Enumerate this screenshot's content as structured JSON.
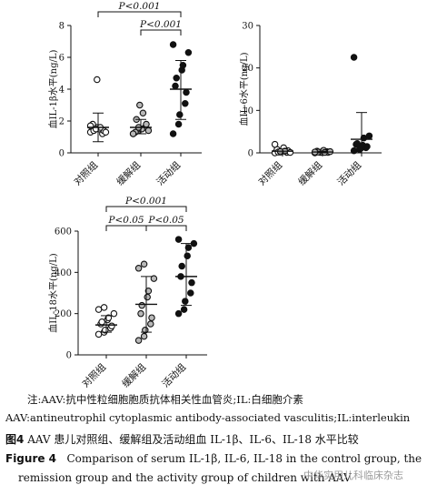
{
  "chart_data": [
    {
      "type": "scatter",
      "ylabel": "血IL-1β水平(ng/L)",
      "ylim": [
        0,
        8
      ],
      "yticks": [
        "0",
        "2",
        "4",
        "6",
        "8"
      ],
      "categories": [
        "对照组",
        "缓解组",
        "活动组"
      ],
      "fills": [
        "#ffffff",
        "#b8b8b8",
        "#111111"
      ],
      "points": [
        [
          1.3,
          1.5,
          1.6,
          1.2,
          1.4,
          1.8,
          1.4,
          1.5,
          1.6,
          1.3,
          1.7,
          1.5,
          4.6
        ],
        [
          1.2,
          1.4,
          1.5,
          1.6,
          1.8,
          1.3,
          2.1,
          1.5,
          2.5,
          1.4,
          1.2,
          1.6,
          3.0
        ],
        [
          1.2,
          1.8,
          2.4,
          3.1,
          3.8,
          4.2,
          4.7,
          5.2,
          5.5,
          6.3,
          6.8
        ]
      ],
      "means": [
        1.6,
        1.6,
        4.0
      ],
      "sd": [
        [
          0.7,
          2.5
        ],
        [
          1.2,
          2.1
        ],
        [
          2.1,
          5.8
        ]
      ],
      "significance": [
        {
          "label": "P<0.001",
          "from": 0,
          "to": 2
        },
        {
          "label": "P<0.001",
          "from": 1,
          "to": 2
        }
      ]
    },
    {
      "type": "scatter",
      "ylabel": "血IL-6水平(ng/L)",
      "ylim": [
        0,
        30
      ],
      "yticks": [
        "0",
        "10",
        "20",
        "30"
      ],
      "categories": [
        "对照组",
        "缓解组",
        "活动组"
      ],
      "fills": [
        "#ffffff",
        "#b8b8b8",
        "#111111"
      ],
      "points": [
        [
          0.0,
          0.2,
          0.3,
          0.1,
          0.5,
          0.8,
          0.2,
          1.2,
          0.4,
          0.1,
          2.0,
          0.3
        ],
        [
          0.0,
          0.1,
          0.2,
          0.3,
          0.1,
          0.4,
          0.2,
          0.6,
          0.1,
          0.3,
          0.2
        ],
        [
          0.5,
          0.8,
          1.0,
          1.2,
          1.5,
          2.0,
          2.2,
          1.8,
          3.5,
          4.0,
          22.5
        ]
      ],
      "means": [
        0.4,
        0.2,
        3.2
      ],
      "sd": [
        [
          0.0,
          0.9
        ],
        [
          0.0,
          0.4
        ],
        [
          0.0,
          9.5
        ]
      ],
      "significance": []
    },
    {
      "type": "scatter",
      "ylabel": "血IL-18水平(ng/L)",
      "ylim": [
        0,
        600
      ],
      "yticks": [
        "0",
        "200",
        "400",
        "600"
      ],
      "categories": [
        "对照组",
        "缓解组",
        "活动组"
      ],
      "fills": [
        "#ffffff",
        "#b8b8b8",
        "#111111"
      ],
      "points": [
        [
          100,
          110,
          120,
          130,
          140,
          150,
          160,
          170,
          180,
          200,
          220,
          230
        ],
        [
          70,
          90,
          120,
          150,
          180,
          200,
          240,
          280,
          310,
          370,
          420,
          440
        ],
        [
          200,
          220,
          260,
          300,
          350,
          380,
          430,
          480,
          520,
          540,
          560
        ]
      ],
      "means": [
        145,
        245,
        380
      ],
      "sd": [
        [
          110,
          190
        ],
        [
          110,
          380
        ],
        [
          240,
          540
        ]
      ],
      "significance": [
        {
          "label": "P<0.001",
          "from": 0,
          "to": 2
        },
        {
          "label": "P<0.05",
          "from": 0,
          "to": 1
        },
        {
          "label": "P<0.05",
          "from": 1,
          "to": 2
        }
      ]
    }
  ],
  "caption": {
    "note_cn": "注:AAV:抗中性粒细胞胞质抗体相关性血管炎;IL:白细胞介素",
    "note_en": "AAV:antineutrophil cytoplasmic antibody-associated vasculitis;IL:interleukin",
    "figure_label_cn": "图4",
    "title_cn": "AAV 患儿对照组、缓解组及活动组血 IL-1β、IL-6、IL-18 水平比较",
    "figure_label_en": "Figure 4",
    "title_en_line1": "Comparison of serum IL-1β, IL-6, IL-18 in the control group, the",
    "title_en_line2": "remission group and the activity group of children with AAV",
    "watermark": "中华实用儿科临床杂志"
  }
}
